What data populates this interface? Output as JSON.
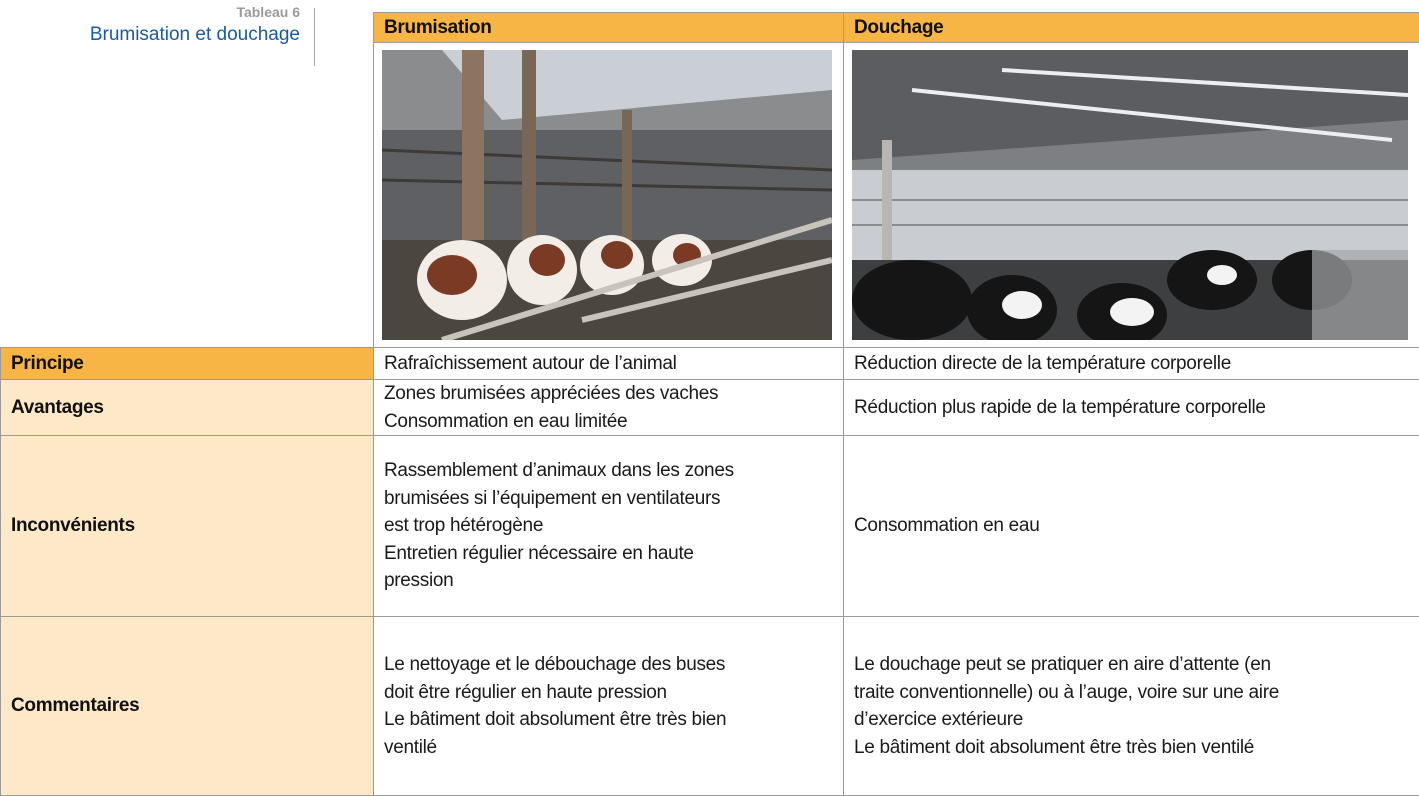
{
  "caption": {
    "label": "Tableau 6",
    "title": "Brumisation et douchage"
  },
  "table": {
    "columns": [
      "Brumisation",
      "Douchage"
    ],
    "rows": [
      {
        "label": "Principe",
        "cells": [
          [
            "Rafraîchissement autour de l’animal"
          ],
          [
            "Réduction directe de la température corporelle"
          ]
        ]
      },
      {
        "label": "Avantages",
        "cells": [
          [
            "Zones brumisées appréciées des vaches",
            "Consommation en eau limitée"
          ],
          [
            "Réduction plus rapide de la température corporelle"
          ]
        ]
      },
      {
        "label": "Inconvénients",
        "cells": [
          [
            "Rassemblement d’animaux dans les zones",
            "brumisées si l’équipement en ventilateurs",
            "est trop hétérogène",
            "Entretien régulier nécessaire en haute",
            "pression"
          ],
          [
            "Consommation en eau"
          ]
        ]
      },
      {
        "label": "Commentaires",
        "cells": [
          [
            "Le nettoyage et le débouchage des buses",
            "doit être régulier en haute pression",
            "Le bâtiment doit absolument être très bien",
            "ventilé"
          ],
          [
            "Le douchage peut se pratiquer en aire d’attente (en",
            "traite conventionnelle)  ou à l’auge, voire sur une aire",
            "d’exercice extérieure",
            "Le bâtiment doit absolument être très bien ventilé"
          ]
        ]
      }
    ]
  }
}
